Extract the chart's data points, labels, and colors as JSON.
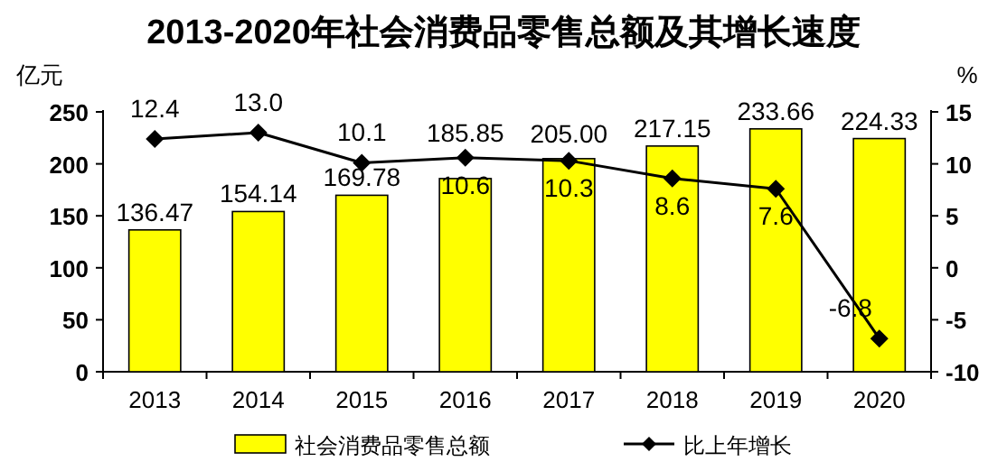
{
  "chart_data": {
    "type": "bar",
    "title": "2013-2020年社会消费品零售总额及其增长速度",
    "ylabel": "亿元",
    "y2label": "%",
    "categories": [
      "2013",
      "2014",
      "2015",
      "2016",
      "2017",
      "2018",
      "2019",
      "2020"
    ],
    "series": [
      {
        "name": "社会消费品零售总额",
        "color": "#ffff00",
        "values": [
          136.47,
          154.14,
          169.78,
          185.85,
          205.0,
          217.15,
          233.66,
          224.33
        ],
        "value_labels": [
          "136.47",
          "154.14",
          "169.78",
          "185.85",
          "205.00",
          "217.15",
          "233.66",
          "224.33"
        ]
      },
      {
        "name": "比上年增长",
        "type": "line",
        "axis": "y2",
        "color": "#000000",
        "marker": "diamond",
        "values": [
          12.4,
          13.0,
          10.1,
          10.6,
          10.3,
          8.6,
          7.6,
          -6.8
        ],
        "value_labels": [
          "12.4",
          "13.0",
          "10.1",
          "10.6",
          "10.3",
          "8.6",
          "7.6",
          "-6.8"
        ]
      }
    ],
    "ylim": [
      0,
      250
    ],
    "yticks": [
      0,
      50,
      100,
      150,
      200,
      250
    ],
    "y2lim": [
      -10,
      15
    ],
    "y2ticks": [
      -10,
      -5,
      0,
      5,
      10,
      15
    ],
    "legend": "bottom",
    "grid": false
  }
}
